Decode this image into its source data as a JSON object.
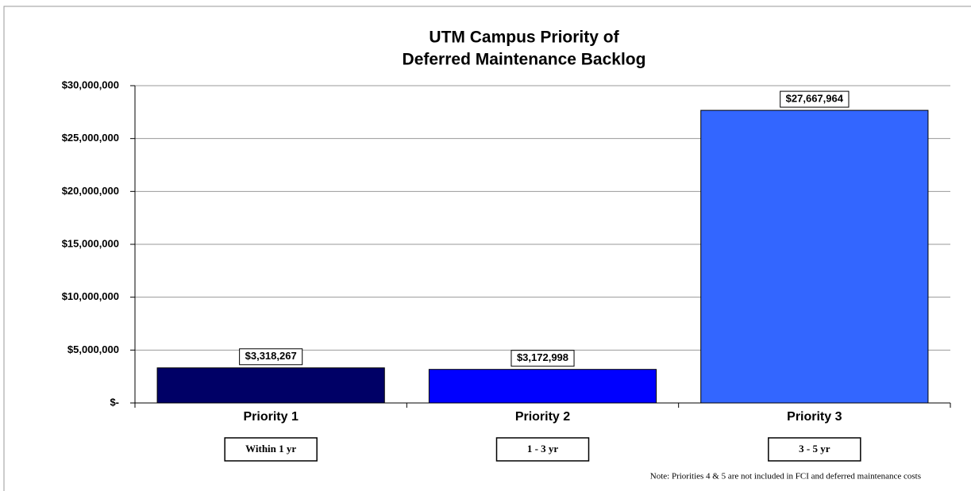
{
  "chart_data": {
    "type": "bar",
    "title": [
      "UTM Campus Priority of",
      "Deferred Maintenance Backlog"
    ],
    "categories": [
      "Priority 1",
      "Priority 2",
      "Priority 3"
    ],
    "sublabels": [
      "Within 1 yr",
      "1 - 3 yr",
      "3 - 5 yr"
    ],
    "values": [
      3318267,
      3172998,
      27667964
    ],
    "value_labels": [
      "$3,318,267",
      "$3,172,998",
      "$27,667,964"
    ],
    "colors": [
      "#000066",
      "#0000ff",
      "#3366ff"
    ],
    "ylim": [
      0,
      30000000
    ],
    "yticks": [
      {
        "value": 0,
        "label": "$-"
      },
      {
        "value": 5000000,
        "label": "$5,000,000"
      },
      {
        "value": 10000000,
        "label": "$10,000,000"
      },
      {
        "value": 15000000,
        "label": "$15,000,000"
      },
      {
        "value": 20000000,
        "label": "$20,000,000"
      },
      {
        "value": 25000000,
        "label": "$25,000,000"
      },
      {
        "value": 30000000,
        "label": "$30,000,000"
      }
    ],
    "grid": true,
    "note": "Note: Priorities 4 & 5 are not included in FCI and deferred maintenance costs"
  }
}
